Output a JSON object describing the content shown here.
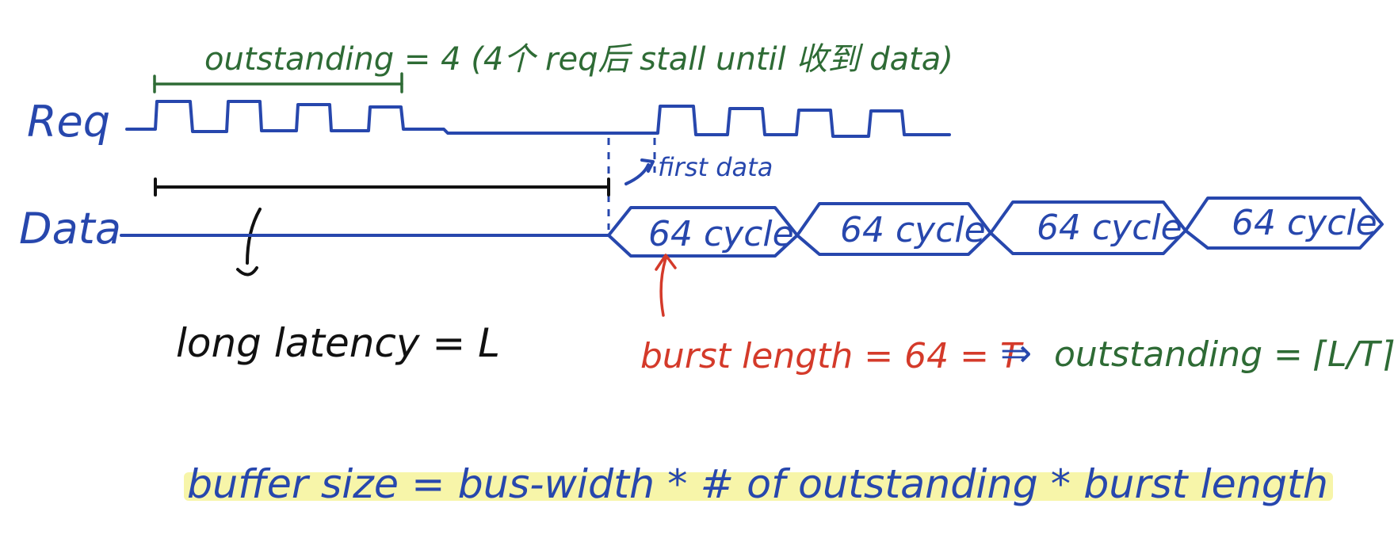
{
  "signals": {
    "req_label": "Req",
    "data_label": "Data"
  },
  "outstanding_note": "outstanding = 4 (4个 req后 stall until 收到 data)",
  "first_data_label": "first data",
  "latency_label": "long latency = L",
  "burst_label": "burst length = 64 = T",
  "implies_symbol": "⇒",
  "outstanding_formula": "outstanding = ⌈L/T⌉",
  "data_segments": [
    "64 cycle",
    "64 cycle",
    "64 cycle",
    "64 cycle"
  ],
  "buffer_formula": "buffer size = bus-width * # of outstanding * burst length",
  "colors": {
    "blue": "#2747ad",
    "green": "#2e6b35",
    "red": "#d43a2a",
    "black": "#111111",
    "highlight": "#f6f39a"
  }
}
